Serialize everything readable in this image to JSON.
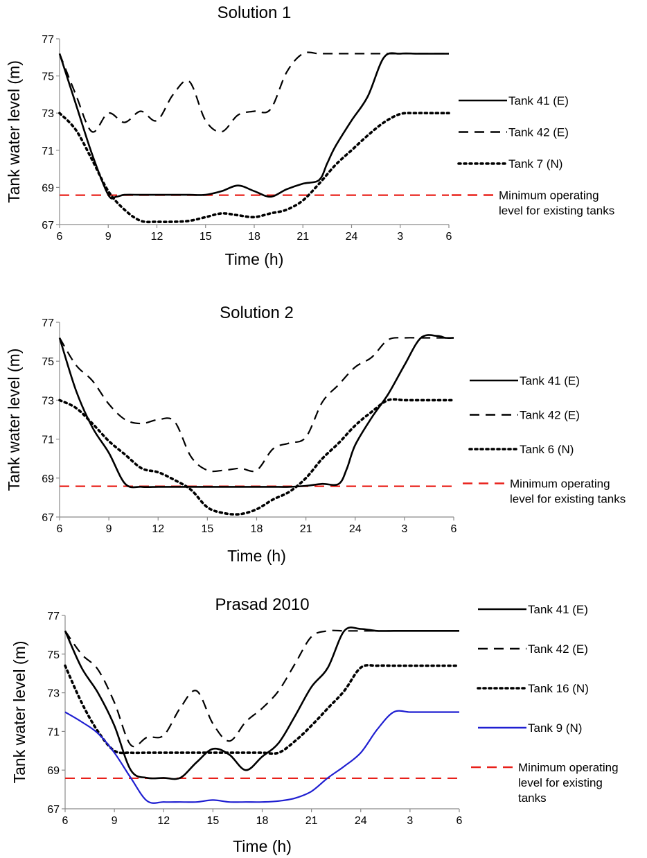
{
  "chart_data": [
    {
      "type": "line",
      "title": "Solution 1",
      "xlabel": "Time (h)",
      "ylabel": "Tank water level (m)",
      "x_tick_labels": [
        "6",
        "9",
        "12",
        "15",
        "18",
        "21",
        "24",
        "3",
        "6"
      ],
      "x_range_hours": [
        0,
        24
      ],
      "ylim": [
        67,
        77
      ],
      "y_ticks": [
        67,
        69,
        71,
        73,
        75,
        77
      ],
      "grid": false,
      "legend_position": "right",
      "series": [
        {
          "name": "Tank 41 (E)",
          "style": "solid",
          "color": "#000000",
          "x": [
            0,
            1,
            2,
            3,
            3.5,
            4,
            5,
            6,
            7,
            8,
            9,
            10,
            11,
            12,
            13,
            14,
            15,
            16,
            16.5,
            17,
            18,
            19,
            20,
            21,
            22,
            23,
            24
          ],
          "y": [
            76.2,
            73.5,
            70.8,
            68.6,
            68.5,
            68.6,
            68.6,
            68.6,
            68.6,
            68.6,
            68.6,
            68.8,
            69.1,
            68.8,
            68.5,
            68.9,
            69.2,
            69.4,
            70.3,
            71.2,
            72.6,
            73.9,
            76.0,
            76.2,
            76.2,
            76.2,
            76.2
          ]
        },
        {
          "name": "Tank 42 (E)",
          "style": "dashed",
          "color": "#000000",
          "x": [
            0,
            1,
            2,
            3,
            4,
            5,
            6,
            7,
            8,
            9,
            10,
            11,
            12,
            13,
            14,
            15,
            16,
            17,
            18,
            19,
            20,
            21,
            22,
            23,
            24
          ],
          "y": [
            76.2,
            74.0,
            72.0,
            73.0,
            72.5,
            73.1,
            72.6,
            74.0,
            74.7,
            72.6,
            72.0,
            72.9,
            73.1,
            73.2,
            75.2,
            76.2,
            76.2,
            76.2,
            76.2,
            76.2,
            76.2,
            76.2,
            76.2,
            76.2,
            76.2
          ]
        },
        {
          "name": "Tank 7 (N)",
          "style": "dotted",
          "color": "#000000",
          "x": [
            0,
            1,
            2,
            3,
            4,
            5,
            6,
            7,
            8,
            9,
            10,
            11,
            12,
            13,
            14,
            15,
            16,
            17,
            18,
            19,
            20,
            21,
            22,
            23,
            24
          ],
          "y": [
            73.0,
            72.1,
            70.5,
            68.8,
            67.8,
            67.2,
            67.15,
            67.15,
            67.2,
            67.4,
            67.6,
            67.5,
            67.4,
            67.6,
            67.8,
            68.3,
            69.2,
            70.2,
            71.0,
            71.8,
            72.5,
            72.95,
            73.0,
            73.0,
            73.0
          ]
        },
        {
          "name": "Minimum operating level for existing tanks",
          "style": "dashed",
          "color": "#e8201a",
          "x": [
            0,
            24
          ],
          "y": [
            68.58,
            68.58
          ]
        }
      ]
    },
    {
      "type": "line",
      "title": "Solution 2",
      "xlabel": "Time (h)",
      "ylabel": "Tank water level (m)",
      "x_tick_labels": [
        "6",
        "9",
        "12",
        "15",
        "18",
        "21",
        "24",
        "3",
        "6"
      ],
      "x_range_hours": [
        0,
        24
      ],
      "ylim": [
        67,
        77
      ],
      "y_ticks": [
        67,
        69,
        71,
        73,
        75,
        77
      ],
      "grid": false,
      "legend_position": "right",
      "series": [
        {
          "name": "Tank 41 (E)",
          "style": "solid",
          "color": "#000000",
          "x": [
            0,
            1,
            2,
            3,
            4,
            5,
            6,
            7,
            8,
            9,
            10,
            11,
            12,
            13,
            14,
            15,
            16,
            17,
            17.5,
            18,
            19,
            20,
            21,
            22,
            23,
            23.5,
            24
          ],
          "y": [
            76.2,
            73.5,
            71.6,
            70.3,
            68.7,
            68.55,
            68.55,
            68.55,
            68.55,
            68.55,
            68.55,
            68.55,
            68.55,
            68.55,
            68.55,
            68.6,
            68.7,
            68.7,
            69.5,
            70.7,
            72.1,
            73.3,
            74.8,
            76.2,
            76.3,
            76.2,
            76.2
          ]
        },
        {
          "name": "Tank 42 (E)",
          "style": "dashed",
          "color": "#000000",
          "x": [
            0,
            1,
            2,
            3,
            4,
            5,
            6,
            7,
            8,
            9,
            10,
            11,
            12,
            13,
            14,
            15,
            16,
            17,
            18,
            19,
            20,
            21,
            22,
            23,
            24
          ],
          "y": [
            76.2,
            74.8,
            74.0,
            72.8,
            72.0,
            71.8,
            72.0,
            71.9,
            70.1,
            69.4,
            69.4,
            69.5,
            69.4,
            70.5,
            70.8,
            71.1,
            72.9,
            73.8,
            74.7,
            75.2,
            76.1,
            76.2,
            76.2,
            76.2,
            76.2
          ]
        },
        {
          "name": "Tank 6 (N)",
          "style": "dotted",
          "color": "#000000",
          "x": [
            0,
            1,
            2,
            3,
            4,
            5,
            6,
            7,
            8,
            9,
            10,
            11,
            12,
            13,
            14,
            15,
            16,
            17,
            18,
            19,
            20,
            21,
            22,
            23,
            24
          ],
          "y": [
            73.0,
            72.6,
            71.8,
            70.9,
            70.2,
            69.5,
            69.3,
            68.9,
            68.4,
            67.5,
            67.2,
            67.15,
            67.4,
            67.9,
            68.3,
            69.0,
            70.0,
            70.8,
            71.7,
            72.4,
            73.0,
            73.0,
            73.0,
            73.0,
            73.0
          ]
        },
        {
          "name": "Minimum operating level for existing tanks",
          "style": "dashed",
          "color": "#e8201a",
          "x": [
            0,
            24
          ],
          "y": [
            68.58,
            68.58
          ]
        }
      ]
    },
    {
      "type": "line",
      "title": "Prasad 2010",
      "xlabel": "Time (h)",
      "ylabel": "Tank water level (m)",
      "x_tick_labels": [
        "6",
        "9",
        "12",
        "15",
        "18",
        "21",
        "24",
        "3",
        "6"
      ],
      "x_range_hours": [
        0,
        24
      ],
      "ylim": [
        67,
        77
      ],
      "y_ticks": [
        67,
        69,
        71,
        73,
        75,
        77
      ],
      "grid": false,
      "legend_position": "right",
      "series": [
        {
          "name": "Tank 41 (E)",
          "style": "solid",
          "color": "#000000",
          "x": [
            0,
            1,
            2,
            3,
            4,
            5,
            6,
            7,
            8,
            9,
            10,
            11,
            12,
            13,
            14,
            15,
            16,
            17,
            18,
            19,
            20,
            20.5,
            21,
            22,
            23,
            24
          ],
          "y": [
            76.2,
            74.3,
            73.0,
            71.3,
            69.0,
            68.6,
            68.6,
            68.6,
            69.4,
            70.1,
            69.8,
            69.0,
            69.7,
            70.4,
            71.8,
            73.3,
            74.3,
            76.2,
            76.3,
            76.2,
            76.2,
            76.2,
            76.2,
            76.2,
            76.2,
            76.2
          ]
        },
        {
          "name": "Tank 42 (E)",
          "style": "dashed",
          "color": "#000000",
          "x": [
            0,
            1,
            2,
            3,
            4,
            5,
            6,
            7,
            8,
            9,
            10,
            11,
            12,
            13,
            14,
            15,
            16,
            17,
            18,
            19,
            20,
            21,
            22,
            23,
            24
          ],
          "y": [
            76.2,
            75.0,
            74.2,
            72.5,
            70.3,
            70.7,
            70.8,
            72.2,
            73.1,
            71.4,
            70.5,
            71.5,
            72.2,
            73.1,
            74.5,
            75.9,
            76.2,
            76.2,
            76.2,
            76.2,
            76.2,
            76.2,
            76.2,
            76.2,
            76.2
          ]
        },
        {
          "name": "Tank 16 (N)",
          "style": "dotted",
          "color": "#000000",
          "x": [
            0,
            1,
            2,
            3,
            4,
            5,
            6,
            7,
            8,
            9,
            10,
            11,
            12,
            13,
            14,
            15,
            16,
            17,
            18,
            19,
            20,
            21,
            22,
            23,
            24
          ],
          "y": [
            74.4,
            72.5,
            71.0,
            70.0,
            69.9,
            69.9,
            69.9,
            69.9,
            69.9,
            69.9,
            69.9,
            69.9,
            69.9,
            69.9,
            70.5,
            71.3,
            72.2,
            73.1,
            74.3,
            74.4,
            74.4,
            74.4,
            74.4,
            74.4,
            74.4
          ]
        },
        {
          "name": "Tank 9 (N)",
          "style": "solid",
          "color": "#1f1fd1",
          "x": [
            0,
            1,
            2,
            3,
            4,
            5,
            6,
            7,
            8,
            9,
            10,
            11,
            12,
            13,
            14,
            15,
            16,
            17,
            18,
            19,
            20,
            21,
            22,
            23,
            24
          ],
          "y": [
            72.0,
            71.5,
            70.9,
            69.9,
            68.6,
            67.4,
            67.35,
            67.35,
            67.35,
            67.45,
            67.35,
            67.35,
            67.35,
            67.4,
            67.55,
            67.9,
            68.6,
            69.2,
            69.9,
            71.1,
            72.0,
            72.0,
            72.0,
            72.0,
            72.0
          ]
        },
        {
          "name": "Minimum operating level for existing tanks",
          "style": "dashed",
          "color": "#e8201a",
          "x": [
            0,
            24
          ],
          "y": [
            68.58,
            68.58
          ]
        }
      ]
    }
  ],
  "legends": [
    {
      "entries": [
        {
          "label": "Tank 41 (E)",
          "style": "solid",
          "color": "#000000"
        },
        {
          "label": "Tank 42 (E)",
          "style": "dashed",
          "color": "#000000"
        },
        {
          "label": "Tank 7 (N)",
          "style": "dotted",
          "color": "#000000"
        },
        {
          "label_lines": [
            "Minimum operating",
            "level for existing tanks"
          ],
          "style": "dashed",
          "color": "#e8201a"
        }
      ]
    },
    {
      "entries": [
        {
          "label": "Tank 41 (E)",
          "style": "solid",
          "color": "#000000"
        },
        {
          "label": "Tank 42 (E)",
          "style": "dashed",
          "color": "#000000"
        },
        {
          "label": "Tank 6 (N)",
          "style": "dotted",
          "color": "#000000"
        },
        {
          "label_lines": [
            "Minimum operating",
            "level for existing tanks"
          ],
          "style": "dashed",
          "color": "#e8201a"
        }
      ]
    },
    {
      "entries": [
        {
          "label": "Tank 41 (E)",
          "style": "solid",
          "color": "#000000"
        },
        {
          "label": "Tank 42 (E)",
          "style": "dashed",
          "color": "#000000"
        },
        {
          "label": "Tank 16 (N)",
          "style": "dotted",
          "color": "#000000"
        },
        {
          "label": "Tank 9 (N)",
          "style": "solid",
          "color": "#1f1fd1"
        },
        {
          "label_lines": [
            "Minimum operating",
            "level for existing",
            "tanks"
          ],
          "style": "dashed",
          "color": "#e8201a"
        }
      ]
    }
  ]
}
